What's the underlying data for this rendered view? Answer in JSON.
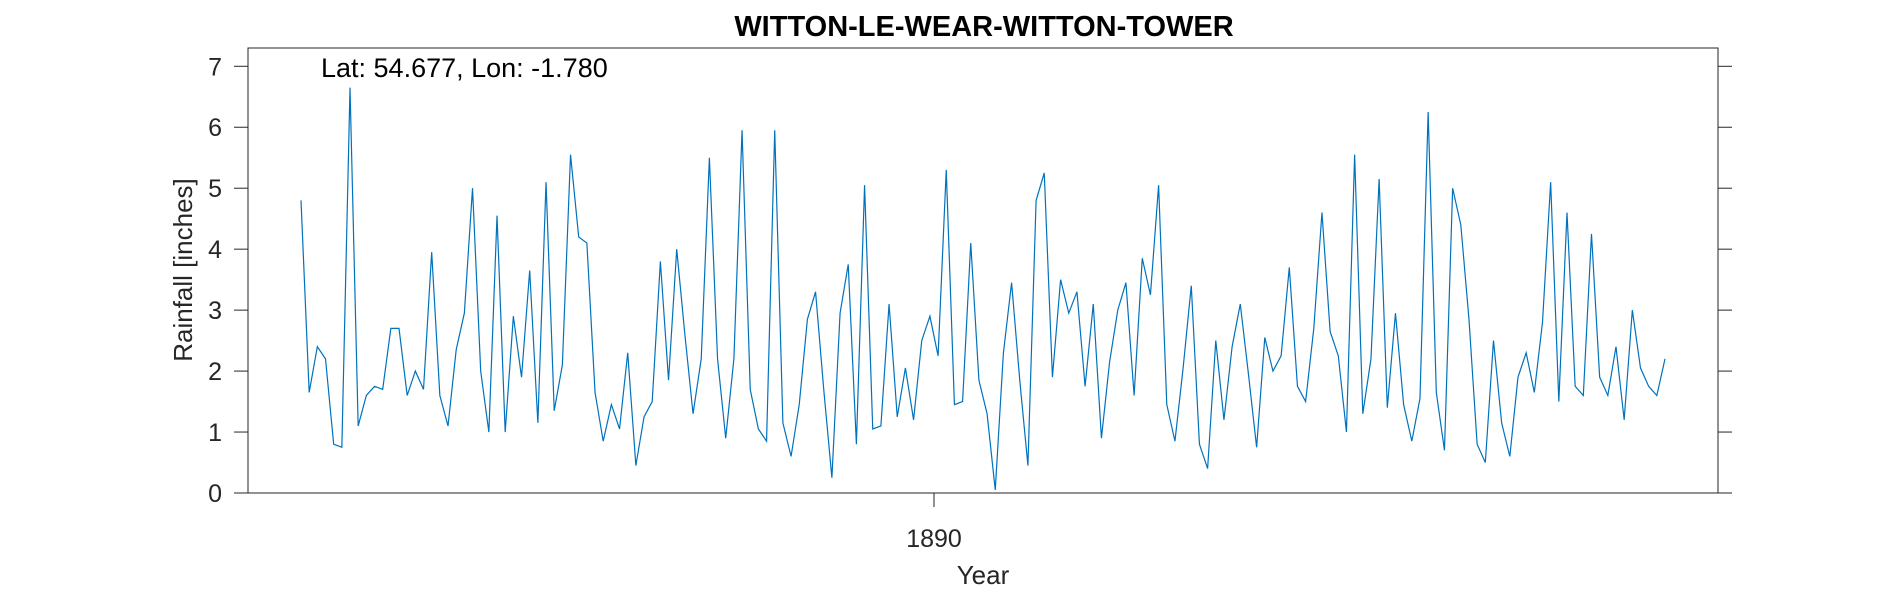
{
  "chart_data": {
    "type": "line",
    "title": "WITTON-LE-WEAR-WITTON-TOWER",
    "annotation": "Lat: 54.677, Lon: -1.780",
    "xlabel": "Year",
    "ylabel": "Rainfall [inches]",
    "x_tick_labels": [
      "1890"
    ],
    "y_tick_labels": [
      "0",
      "1",
      "2",
      "3",
      "4",
      "5",
      "6",
      "7"
    ],
    "ylim": [
      0,
      7.3
    ],
    "grid": false,
    "legend": "none",
    "line_color": "#0072BD",
    "series": [
      {
        "values": [
          4.8,
          1.65,
          2.4,
          2.2,
          0.8,
          0.75,
          6.65,
          1.1,
          1.6,
          1.75,
          1.7,
          2.7,
          2.7,
          1.6,
          2.0,
          1.7,
          3.95,
          1.6,
          1.1,
          2.35,
          2.95,
          5.0,
          2.0,
          1.0,
          4.55,
          1.0,
          2.9,
          1.9,
          3.65,
          1.15,
          5.1,
          1.35,
          2.1,
          5.55,
          4.2,
          4.1,
          1.65,
          0.85,
          1.45,
          1.05,
          2.3,
          0.45,
          1.25,
          1.5,
          3.8,
          1.85,
          4.0,
          2.6,
          1.3,
          2.2,
          5.5,
          2.2,
          0.9,
          2.2,
          5.95,
          1.7,
          1.05,
          0.85,
          5.95,
          1.15,
          0.6,
          1.45,
          2.85,
          3.3,
          1.7,
          0.25,
          2.95,
          3.75,
          0.8,
          5.05,
          1.05,
          1.1,
          3.1,
          1.25,
          2.05,
          1.2,
          2.5,
          2.9,
          2.25,
          5.3,
          1.45,
          1.5,
          4.1,
          1.85,
          1.3,
          0.05,
          2.3,
          3.45,
          1.85,
          0.45,
          4.8,
          5.25,
          1.9,
          3.5,
          2.95,
          3.3,
          1.75,
          3.1,
          0.9,
          2.15,
          3.0,
          3.45,
          1.6,
          3.85,
          3.25,
          5.05,
          1.45,
          0.85,
          2.05,
          3.4,
          0.8,
          0.4,
          2.5,
          1.2,
          2.4,
          3.1,
          1.95,
          0.75,
          2.55,
          2.0,
          2.25,
          3.7,
          1.75,
          1.5,
          2.7,
          4.6,
          2.65,
          2.25,
          1.0,
          5.55,
          1.3,
          2.2,
          5.15,
          1.4,
          2.95,
          1.45,
          0.85,
          1.55,
          6.25,
          1.65,
          0.7,
          5.0,
          4.4,
          2.85,
          0.8,
          0.5,
          2.5,
          1.15,
          0.6,
          1.9,
          2.3,
          1.65,
          2.8,
          5.1,
          1.5,
          4.6,
          1.75,
          1.6,
          4.25,
          1.9,
          1.6,
          2.4,
          1.2,
          3.0,
          2.05,
          1.75,
          1.6,
          2.2
        ]
      }
    ]
  }
}
